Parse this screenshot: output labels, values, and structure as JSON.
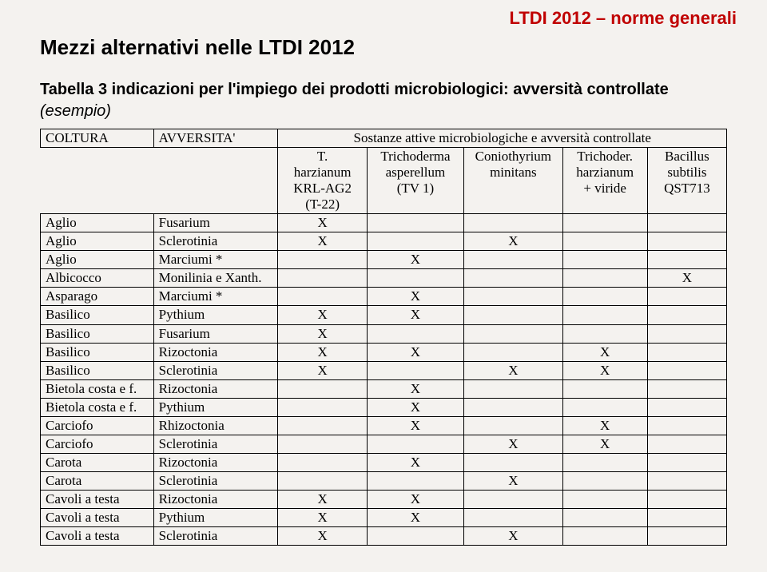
{
  "banner": "LTDI 2012 – norme generali",
  "title": "Mezzi alternativi nelle LTDI 2012",
  "subtitle": "Tabella 3 indicazioni per l'impiego dei prodotti microbiologici: avversità controllate",
  "example_label": "(esempio)",
  "table": {
    "top_left_0": "COLTURA",
    "top_left_1": "AVVERSITA'",
    "group_header": "Sostanze attive microbiologiche e avversità controllate",
    "col_headers": [
      "T.\nharzianum\nKRL-AG2\n(T-22)",
      "Trichoderma\nasperellum\n(TV 1)",
      "Coniothyrium\nminitans",
      "Trichoder.\nharzianum\n+ viride",
      "Bacillus\nsubtilis\nQST713"
    ],
    "rows": [
      {
        "coltura": "Aglio",
        "avversita": "Fusarium",
        "x": [
          true,
          false,
          false,
          false,
          false
        ]
      },
      {
        "coltura": "Aglio",
        "avversita": "Sclerotinia",
        "x": [
          true,
          false,
          true,
          false,
          false
        ]
      },
      {
        "coltura": "Aglio",
        "avversita": "Marciumi *",
        "x": [
          false,
          true,
          false,
          false,
          false
        ]
      },
      {
        "coltura": "Albicocco",
        "avversita": "Monilinia e Xanth.",
        "x": [
          false,
          false,
          false,
          false,
          true
        ]
      },
      {
        "coltura": "Asparago",
        "avversita": "Marciumi *",
        "x": [
          false,
          true,
          false,
          false,
          false
        ]
      },
      {
        "coltura": "Basilico",
        "avversita": "Pythium",
        "x": [
          true,
          true,
          false,
          false,
          false
        ]
      },
      {
        "coltura": "Basilico",
        "avversita": "Fusarium",
        "x": [
          true,
          false,
          false,
          false,
          false
        ]
      },
      {
        "coltura": "Basilico",
        "avversita": "Rizoctonia",
        "x": [
          true,
          true,
          false,
          true,
          false
        ]
      },
      {
        "coltura": "Basilico",
        "avversita": "Sclerotinia",
        "x": [
          true,
          false,
          true,
          true,
          false
        ]
      },
      {
        "coltura": "Bietola costa e f.",
        "avversita": "Rizoctonia",
        "x": [
          false,
          true,
          false,
          false,
          false
        ]
      },
      {
        "coltura": "Bietola costa e f.",
        "avversita": "Pythium",
        "x": [
          false,
          true,
          false,
          false,
          false
        ]
      },
      {
        "coltura": "Carciofo",
        "avversita": "Rhizoctonia",
        "x": [
          false,
          true,
          false,
          true,
          false
        ]
      },
      {
        "coltura": "Carciofo",
        "avversita": "Sclerotinia",
        "x": [
          false,
          false,
          true,
          true,
          false
        ]
      },
      {
        "coltura": "Carota",
        "avversita": "Rizoctonia",
        "x": [
          false,
          true,
          false,
          false,
          false
        ]
      },
      {
        "coltura": "Carota",
        "avversita": "Sclerotinia",
        "x": [
          false,
          false,
          true,
          false,
          false
        ]
      },
      {
        "coltura": "Cavoli a testa",
        "avversita": "Rizoctonia",
        "x": [
          true,
          true,
          false,
          false,
          false
        ]
      },
      {
        "coltura": "Cavoli a testa",
        "avversita": "Pythium",
        "x": [
          true,
          true,
          false,
          false,
          false
        ]
      },
      {
        "coltura": "Cavoli a testa",
        "avversita": "Sclerotinia",
        "x": [
          true,
          false,
          true,
          false,
          false
        ]
      }
    ],
    "x_mark": "X",
    "colors": {
      "banner_text": "#c00000",
      "background": "#f4f2ef",
      "text": "#000000",
      "border": "#000000"
    }
  }
}
